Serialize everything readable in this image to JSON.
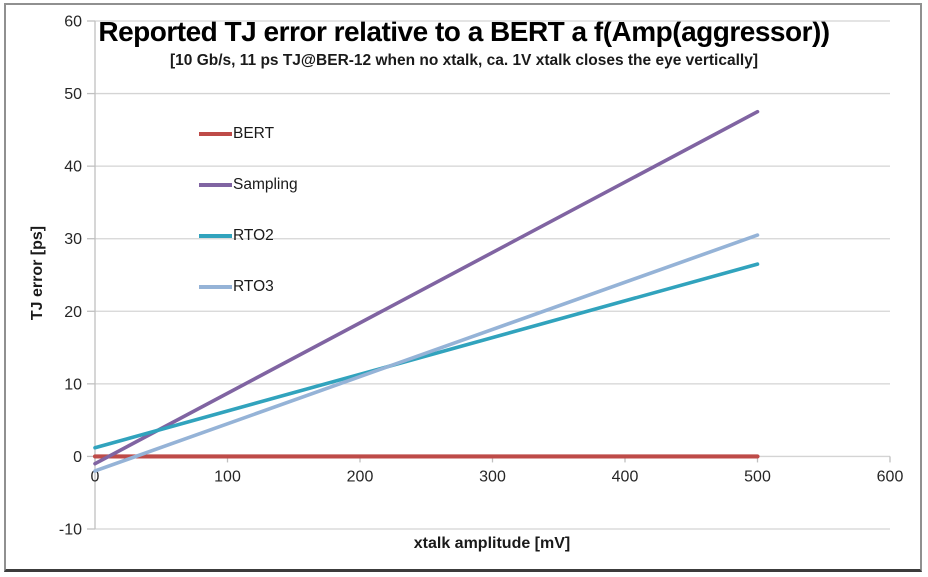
{
  "chart_data": {
    "type": "line",
    "title": "Reported TJ error relative to a BERT a f(Amp(aggressor))",
    "subtitle": "[10 Gb/s, 11 ps TJ@BER-12 when no xtalk, ca. 1V xtalk closes the eye vertically]",
    "xlabel": "xtalk amplitude [mV]",
    "ylabel": "TJ error [ps]",
    "xlim": [
      0,
      600
    ],
    "ylim": [
      -10,
      60
    ],
    "xticks": [
      0,
      100,
      200,
      300,
      400,
      500,
      600
    ],
    "yticks": [
      60,
      50,
      40,
      30,
      20,
      10,
      0,
      -10
    ],
    "grid": "horizontal",
    "legend_position": "inside-upper-left",
    "series": [
      {
        "name": "BERT",
        "color": "#BE4B48",
        "x": [
          0,
          500
        ],
        "values": [
          0,
          0
        ]
      },
      {
        "name": "Sampling",
        "color": "#8064A2",
        "x": [
          0,
          500
        ],
        "values": [
          -1,
          47.5
        ]
      },
      {
        "name": "RTO2",
        "color": "#31A3BD",
        "x": [
          0,
          500
        ],
        "values": [
          1.2,
          26.5
        ]
      },
      {
        "name": "RTO3",
        "color": "#95B3D7",
        "x": [
          0,
          500
        ],
        "values": [
          -2,
          30.5
        ]
      }
    ]
  },
  "colors": {
    "gridline": "#D4D4D4",
    "axis_line": "#C0C0C0",
    "tick_text": "#262626",
    "frame_border": "#909090"
  }
}
